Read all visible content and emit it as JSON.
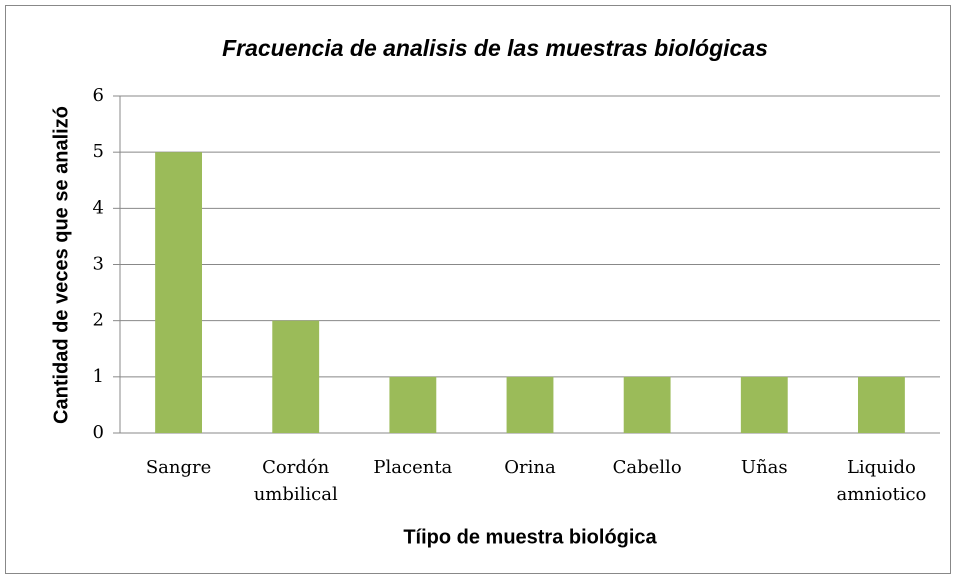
{
  "chart_data": {
    "type": "bar",
    "title": "Fracuencia de analisis de las muestras biológicas",
    "x_label": "Tíipo de muestra biológica",
    "y_label": "Cantidad de veces que se analizó",
    "categories": [
      "Sangre",
      "Cordón umbilical",
      "Placenta",
      "Orina",
      "Cabello",
      "Uñas",
      "Liquido amniotico"
    ],
    "values": [
      5,
      2,
      1,
      1,
      1,
      1,
      1
    ],
    "color": "#9bbb59",
    "ylim": [
      0,
      6
    ],
    "yticks": [
      0,
      1,
      2,
      3,
      4,
      5,
      6
    ],
    "grid": true
  }
}
